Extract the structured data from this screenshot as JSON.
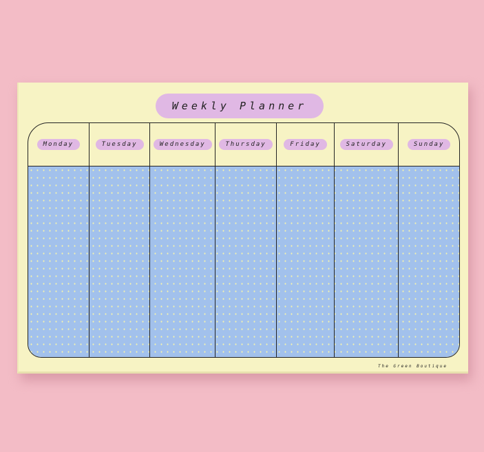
{
  "title": "Weekly Planner",
  "days": [
    "Monday",
    "Tuesday",
    "Wednesday",
    "Thursday",
    "Friday",
    "Saturday",
    "Sunday"
  ],
  "brand": "The Green Boutique",
  "colors": {
    "background": "#f3bcc6",
    "paper": "#f7f3c4",
    "label": "#e0b8e4",
    "writing_area": "#a2c1ec"
  }
}
